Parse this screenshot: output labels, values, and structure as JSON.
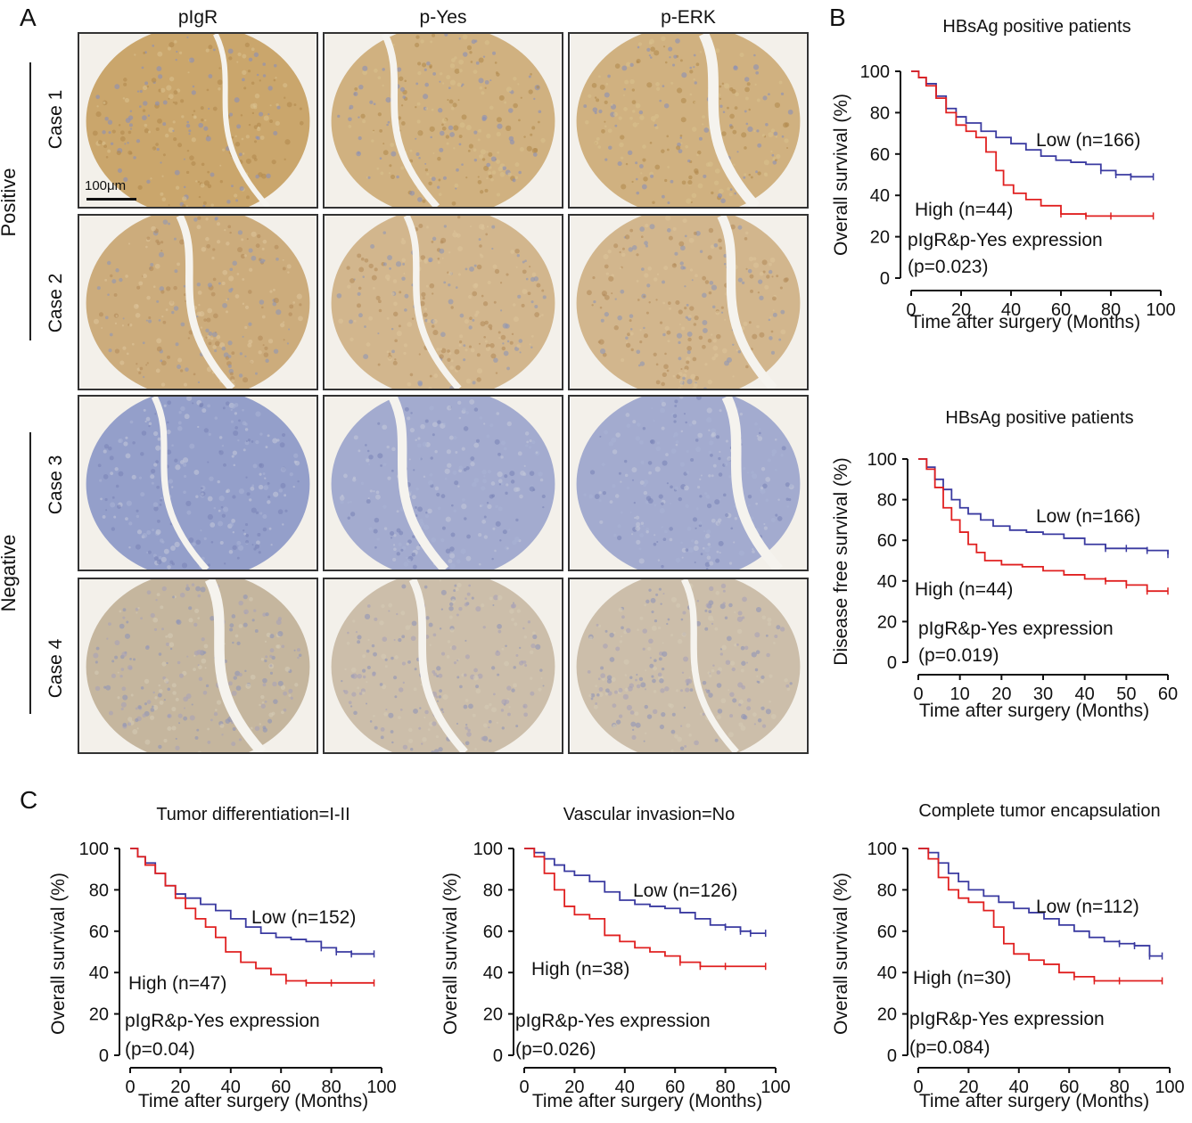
{
  "panels": {
    "a_letter": "A",
    "b_letter": "B",
    "c_letter": "C"
  },
  "ihc": {
    "columns": [
      "pIgR",
      "p-Yes",
      "p-ERK"
    ],
    "rows": [
      "Case 1",
      "Case 2",
      "Case 3",
      "Case 4"
    ],
    "groups": [
      "Positive",
      "Negative"
    ],
    "scale_bar": "100μm",
    "colors": {
      "positive_stain": "#c9a46a",
      "negative_stain": "#b9c3d6",
      "background": "#f3f0ea"
    }
  },
  "chart_data": [
    {
      "type": "line",
      "title": "HBsAg positive patients",
      "xlabel": "Time after surgery (Months)",
      "ylabel": "Overall survival (%)",
      "xlim": [
        0,
        100
      ],
      "ylim": [
        0,
        100
      ],
      "xticks": [
        0,
        20,
        40,
        60,
        80,
        100
      ],
      "yticks": [
        0,
        20,
        40,
        60,
        80,
        100
      ],
      "annotation": "pIgR&p-Yes expression",
      "pvalue": "(p=0.023)",
      "series": [
        {
          "name": "Low (n=166)",
          "color": "#3a3aa0",
          "x": [
            0,
            3,
            6,
            10,
            14,
            18,
            22,
            28,
            34,
            40,
            46,
            52,
            58,
            64,
            70,
            76,
            82,
            88,
            97
          ],
          "y": [
            100,
            97,
            94,
            88,
            82,
            78,
            75,
            71,
            68,
            65,
            62,
            59,
            57,
            56,
            55,
            52,
            50,
            49,
            49
          ]
        },
        {
          "name": "High (n=44)",
          "color": "#e02020",
          "x": [
            0,
            3,
            6,
            10,
            14,
            18,
            22,
            26,
            30,
            34,
            37,
            41,
            46,
            52,
            60,
            70,
            80,
            97
          ],
          "y": [
            100,
            97,
            93,
            87,
            80,
            74,
            71,
            68,
            61,
            52,
            45,
            41,
            38,
            35,
            31,
            30,
            30,
            30
          ]
        }
      ]
    },
    {
      "type": "line",
      "title": "HBsAg positive patients",
      "xlabel": "Time after surgery (Months)",
      "ylabel": "Disease free survival (%)",
      "xlim": [
        0,
        60
      ],
      "ylim": [
        0,
        100
      ],
      "xticks": [
        0,
        10,
        20,
        30,
        40,
        50,
        60
      ],
      "yticks": [
        0,
        20,
        40,
        60,
        80,
        100
      ],
      "annotation": "pIgR&p-Yes expression",
      "pvalue": "(p=0.019)",
      "series": [
        {
          "name": "Low (n=166)",
          "color": "#3a3aa0",
          "x": [
            0,
            2,
            4,
            6,
            8,
            10,
            12,
            15,
            18,
            22,
            26,
            30,
            35,
            40,
            45,
            50,
            55,
            60
          ],
          "y": [
            100,
            96,
            90,
            85,
            80,
            76,
            73,
            70,
            67,
            65,
            64,
            63,
            61,
            58,
            56,
            56,
            55,
            53
          ]
        },
        {
          "name": "High (n=44)",
          "color": "#e02020",
          "x": [
            0,
            2,
            4,
            6,
            8,
            10,
            12,
            14,
            16,
            20,
            25,
            30,
            35,
            40,
            45,
            50,
            55,
            60
          ],
          "y": [
            100,
            95,
            86,
            76,
            70,
            64,
            58,
            54,
            50,
            48,
            47,
            45,
            43,
            41,
            40,
            38,
            35,
            35
          ]
        }
      ]
    },
    {
      "type": "line",
      "title": "Tumor differentiation=I-II",
      "xlabel": "Time after surgery (Months)",
      "ylabel": "Overall survival (%)",
      "xlim": [
        0,
        100
      ],
      "ylim": [
        0,
        100
      ],
      "xticks": [
        0,
        20,
        40,
        60,
        80,
        100
      ],
      "yticks": [
        0,
        20,
        40,
        60,
        80,
        100
      ],
      "annotation": "pIgR&p-Yes expression",
      "pvalue": "(p=0.04)",
      "series": [
        {
          "name": "Low (n=152)",
          "color": "#3a3aa0",
          "x": [
            0,
            3,
            6,
            10,
            14,
            18,
            22,
            28,
            34,
            40,
            46,
            52,
            58,
            64,
            70,
            76,
            82,
            88,
            97
          ],
          "y": [
            100,
            96,
            93,
            88,
            82,
            78,
            76,
            73,
            70,
            66,
            62,
            59,
            57,
            56,
            55,
            52,
            50,
            49,
            49
          ]
        },
        {
          "name": "High (n=47)",
          "color": "#e02020",
          "x": [
            0,
            3,
            6,
            10,
            14,
            18,
            22,
            26,
            30,
            34,
            38,
            44,
            50,
            56,
            62,
            70,
            80,
            97
          ],
          "y": [
            100,
            96,
            92,
            88,
            82,
            76,
            71,
            66,
            62,
            57,
            50,
            45,
            42,
            39,
            36,
            35,
            35,
            35
          ]
        }
      ]
    },
    {
      "type": "line",
      "title": "Vascular invasion=No",
      "xlabel": "Time after surgery (Months)",
      "ylabel": "Overall survival (%)",
      "xlim": [
        0,
        100
      ],
      "ylim": [
        0,
        100
      ],
      "xticks": [
        0,
        20,
        40,
        60,
        80,
        100
      ],
      "yticks": [
        0,
        20,
        40,
        60,
        80,
        100
      ],
      "annotation": "pIgR&p-Yes expression",
      "pvalue": "(p=0.026)",
      "series": [
        {
          "name": "Low (n=126)",
          "color": "#3a3aa0",
          "x": [
            0,
            4,
            8,
            12,
            16,
            20,
            26,
            32,
            38,
            44,
            50,
            56,
            62,
            68,
            74,
            80,
            86,
            90,
            96
          ],
          "y": [
            100,
            98,
            95,
            92,
            89,
            87,
            84,
            79,
            75,
            73,
            72,
            71,
            69,
            66,
            63,
            62,
            60,
            59,
            59
          ]
        },
        {
          "name": "High (n=38)",
          "color": "#e02020",
          "x": [
            0,
            4,
            8,
            12,
            16,
            20,
            26,
            32,
            38,
            44,
            50,
            56,
            62,
            70,
            80,
            96
          ],
          "y": [
            100,
            96,
            88,
            80,
            72,
            68,
            66,
            58,
            55,
            52,
            50,
            48,
            45,
            43,
            43,
            43
          ]
        }
      ]
    },
    {
      "type": "line",
      "title": "Complete tumor encapsulation",
      "xlabel": "Time after surgery (Months)",
      "ylabel": "Overall survival (%)",
      "xlim": [
        0,
        100
      ],
      "ylim": [
        0,
        100
      ],
      "xticks": [
        0,
        20,
        40,
        60,
        80,
        100
      ],
      "yticks": [
        0,
        20,
        40,
        60,
        80,
        100
      ],
      "annotation": "pIgR&p-Yes expression",
      "pvalue": "(p=0.084)",
      "series": [
        {
          "name": "Low (n=112)",
          "color": "#3a3aa0",
          "x": [
            0,
            4,
            8,
            12,
            16,
            20,
            26,
            32,
            38,
            44,
            50,
            56,
            62,
            68,
            74,
            80,
            86,
            92,
            97
          ],
          "y": [
            100,
            98,
            93,
            88,
            84,
            80,
            77,
            74,
            71,
            69,
            66,
            63,
            60,
            57,
            55,
            54,
            53,
            48,
            48
          ]
        },
        {
          "name": "High (n=30)",
          "color": "#e02020",
          "x": [
            0,
            4,
            8,
            12,
            16,
            20,
            26,
            30,
            34,
            38,
            44,
            50,
            56,
            62,
            70,
            80,
            97
          ],
          "y": [
            100,
            95,
            86,
            80,
            76,
            74,
            70,
            62,
            54,
            49,
            46,
            44,
            40,
            38,
            36,
            36,
            36
          ]
        }
      ]
    }
  ]
}
